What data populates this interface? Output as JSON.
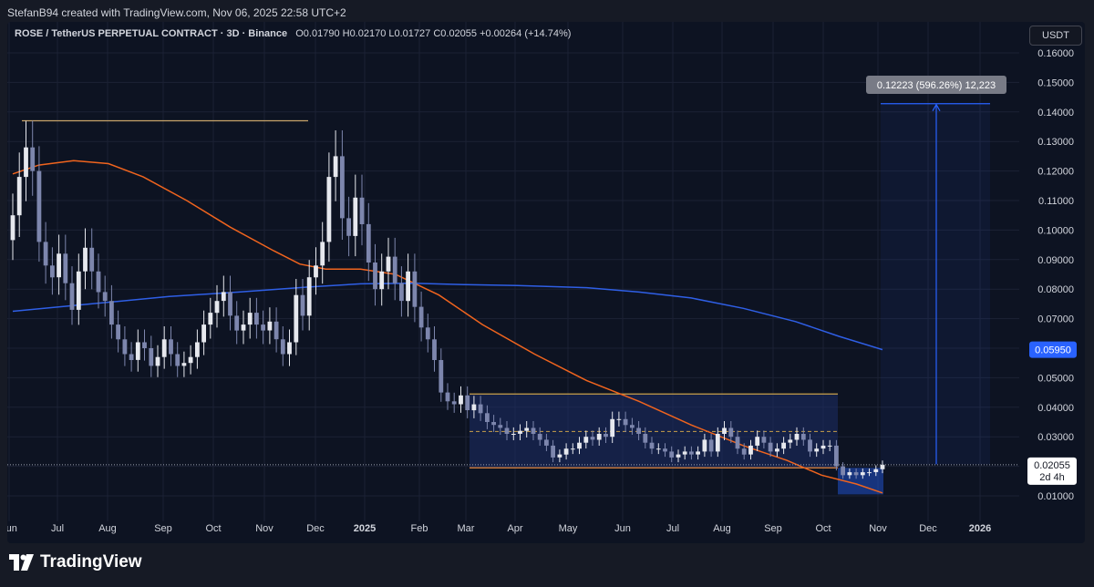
{
  "credit": "StefanB94 created with TradingView.com, Nov 06, 2025 22:58 UTC+2",
  "legend": {
    "symbol": "ROSE / TetherUS PERPETUAL CONTRACT · 3D · Binance",
    "ohlc": "O0.01790 H0.02170 L0.01727 C0.02055 +0.00264 (+14.74%)"
  },
  "currency": "USDT",
  "brand": "TradingView",
  "colors": {
    "up": "#e6e8ee",
    "down": "#7d86ad",
    "ma_fast": "#f0641e",
    "ma_slow": "#2f5fe6",
    "range_box": "#1e2e66",
    "projection": "#2962ff",
    "range_line": "#c8a04a"
  },
  "chart_data": {
    "type": "candlestick",
    "x_ticks": [
      "Jun",
      "Jul",
      "Aug",
      "Sep",
      "Oct",
      "Nov",
      "Dec",
      "2025",
      "Feb",
      "Mar",
      "Apr",
      "May",
      "Jun",
      "Jul",
      "Aug",
      "Sep",
      "Oct",
      "Nov",
      "Dec",
      "2026"
    ],
    "y_ticks": [
      "0.16000",
      "0.15000",
      "0.14000",
      "0.13000",
      "0.12000",
      "0.11000",
      "0.10000",
      "0.09000",
      "0.08000",
      "0.07000",
      "0.06000",
      "0.05000",
      "0.04000",
      "0.03000",
      "0.02000",
      "0.01000"
    ],
    "ylim": [
      0.0,
      0.168
    ],
    "grid": true,
    "price_labels": {
      "ma_slow_value": "0.05950",
      "last_price": "0.02055",
      "countdown": "2d 4h"
    },
    "measure_label": "0.12223 (596.26%) 12,223",
    "range": {
      "top": 0.0445,
      "mid": 0.0318,
      "bottom": 0.0195
    },
    "yearly_high": 0.137,
    "target": 0.1428,
    "closes": [
      0.105,
      0.118,
      0.128,
      0.12,
      0.096,
      0.088,
      0.084,
      0.092,
      0.082,
      0.073,
      0.086,
      0.094,
      0.086,
      0.079,
      0.076,
      0.068,
      0.063,
      0.058,
      0.056,
      0.062,
      0.06,
      0.054,
      0.057,
      0.063,
      0.058,
      0.054,
      0.055,
      0.057,
      0.062,
      0.068,
      0.072,
      0.076,
      0.079,
      0.071,
      0.066,
      0.068,
      0.072,
      0.068,
      0.066,
      0.069,
      0.063,
      0.058,
      0.062,
      0.078,
      0.071,
      0.084,
      0.088,
      0.096,
      0.118,
      0.125,
      0.104,
      0.098,
      0.111,
      0.102,
      0.089,
      0.08,
      0.086,
      0.091,
      0.082,
      0.076,
      0.086,
      0.074,
      0.067,
      0.063,
      0.056,
      0.045,
      0.042,
      0.041,
      0.044,
      0.039,
      0.041,
      0.038,
      0.035,
      0.034,
      0.033,
      0.031,
      0.031,
      0.032,
      0.033,
      0.031,
      0.029,
      0.027,
      0.023,
      0.024,
      0.026,
      0.026,
      0.028,
      0.03,
      0.029,
      0.031,
      0.03,
      0.036,
      0.036,
      0.034,
      0.033,
      0.031,
      0.028,
      0.026,
      0.026,
      0.025,
      0.023,
      0.024,
      0.025,
      0.024,
      0.025,
      0.029,
      0.025,
      0.031,
      0.033,
      0.03,
      0.026,
      0.024,
      0.027,
      0.03,
      0.028,
      0.025,
      0.026,
      0.028,
      0.029,
      0.031,
      0.029,
      0.025,
      0.026,
      0.027,
      0.027,
      0.02,
      0.017,
      0.018,
      0.017,
      0.018,
      0.018,
      0.019,
      0.02055
    ],
    "ma_slow": [
      [
        0.0,
        0.0725
      ],
      [
        0.09,
        0.075
      ],
      [
        0.18,
        0.0775
      ],
      [
        0.26,
        0.079
      ],
      [
        0.34,
        0.0807
      ],
      [
        0.4,
        0.0818
      ],
      [
        0.46,
        0.082
      ],
      [
        0.52,
        0.0815
      ],
      [
        0.58,
        0.0812
      ],
      [
        0.66,
        0.0805
      ],
      [
        0.72,
        0.079
      ],
      [
        0.78,
        0.077
      ],
      [
        0.84,
        0.0735
      ],
      [
        0.9,
        0.069
      ],
      [
        0.95,
        0.064
      ],
      [
        1.0,
        0.0595
      ]
    ],
    "ma_fast": [
      [
        0.0,
        0.119
      ],
      [
        0.03,
        0.122
      ],
      [
        0.07,
        0.1235
      ],
      [
        0.11,
        0.1225
      ],
      [
        0.15,
        0.118
      ],
      [
        0.2,
        0.11
      ],
      [
        0.25,
        0.101
      ],
      [
        0.3,
        0.093
      ],
      [
        0.33,
        0.0885
      ],
      [
        0.36,
        0.0868
      ],
      [
        0.4,
        0.0868
      ],
      [
        0.44,
        0.085
      ],
      [
        0.49,
        0.078
      ],
      [
        0.54,
        0.068
      ],
      [
        0.6,
        0.058
      ],
      [
        0.66,
        0.049
      ],
      [
        0.72,
        0.042
      ],
      [
        0.78,
        0.034
      ],
      [
        0.84,
        0.027
      ],
      [
        0.89,
        0.022
      ],
      [
        0.93,
        0.017
      ],
      [
        0.97,
        0.014
      ],
      [
        1.0,
        0.011
      ]
    ]
  }
}
